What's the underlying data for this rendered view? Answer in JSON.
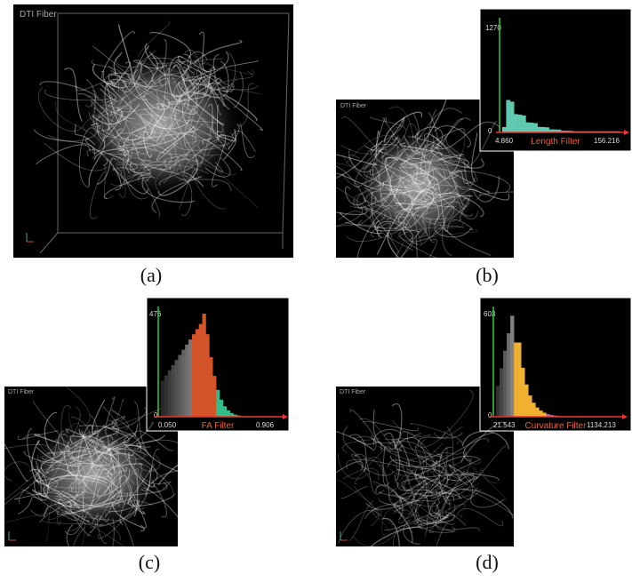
{
  "panels": [
    {
      "label": "(a)",
      "title": "DTI Fiber"
    },
    {
      "label": "(b)",
      "title": "DTI Fiber",
      "histogram": {
        "y_max": "1270",
        "y_min": "0",
        "x_min": "4.860",
        "x_max": "156.216",
        "filter": "Length Filter"
      }
    },
    {
      "label": "(c)",
      "title": "DTI Fiber",
      "histogram": {
        "y_max": "476",
        "y_min": "0",
        "x_min": "0.050",
        "x_max": "0.906",
        "filter": "FA Filter"
      }
    },
    {
      "label": "(d)",
      "title": "DTI Fiber",
      "histogram": {
        "y_max": "603",
        "y_min": "0",
        "x_min": "21.543",
        "x_max": "1134.213",
        "filter": "Curvature Filter"
      }
    }
  ]
}
